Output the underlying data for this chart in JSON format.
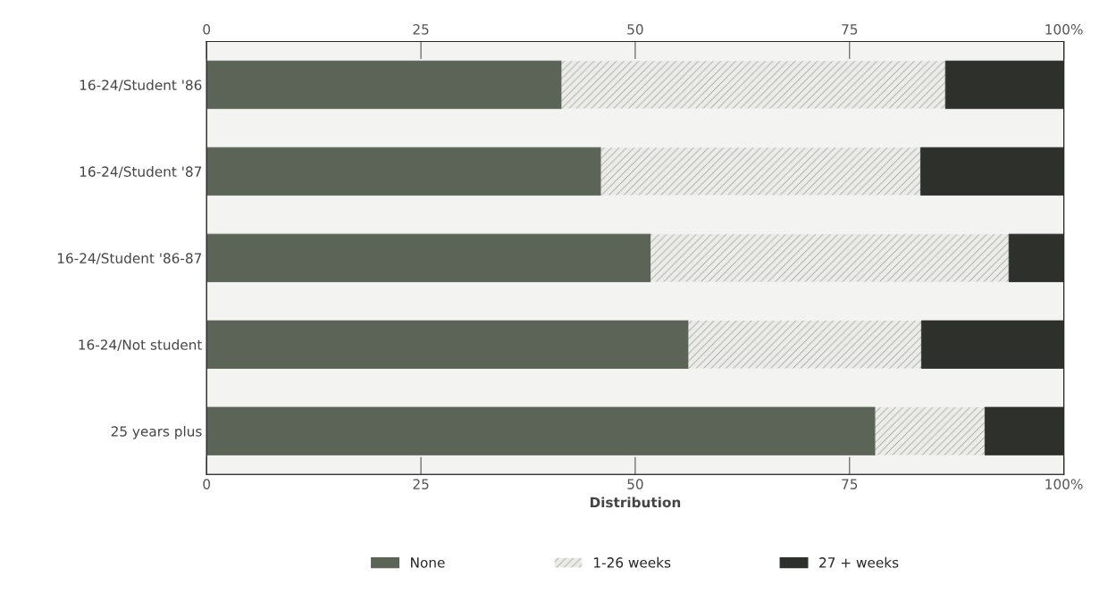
{
  "chart_data": {
    "type": "bar",
    "orientation": "horizontal",
    "stacked": true,
    "categories": [
      "16-24/Student '86",
      "16-24/Student '87",
      "16-24/Student '86-87",
      "16-24/Not student",
      "25 years plus"
    ],
    "series": [
      {
        "name": "None",
        "color": "#5c6458",
        "values": [
          41.4,
          46.0,
          51.8,
          56.2,
          78.0
        ]
      },
      {
        "name": "1-26 weeks",
        "color": "#ebebe8",
        "values": [
          44.8,
          37.3,
          41.8,
          27.2,
          12.8
        ]
      },
      {
        "name": "27 + weeks",
        "color": "#2e302c",
        "values": [
          13.8,
          16.7,
          6.4,
          16.6,
          9.2
        ]
      }
    ],
    "xlabel": "Distribution",
    "xlim": [
      0,
      100
    ],
    "xticks": [
      0,
      25,
      50,
      75,
      {
        "value": 100,
        "label": "100%"
      }
    ],
    "x2lim": [
      0,
      100
    ],
    "x2ticks": [
      0,
      25,
      50,
      75,
      {
        "value": 100,
        "label": "100%"
      }
    ],
    "legend": "bottom",
    "grid": false
  }
}
